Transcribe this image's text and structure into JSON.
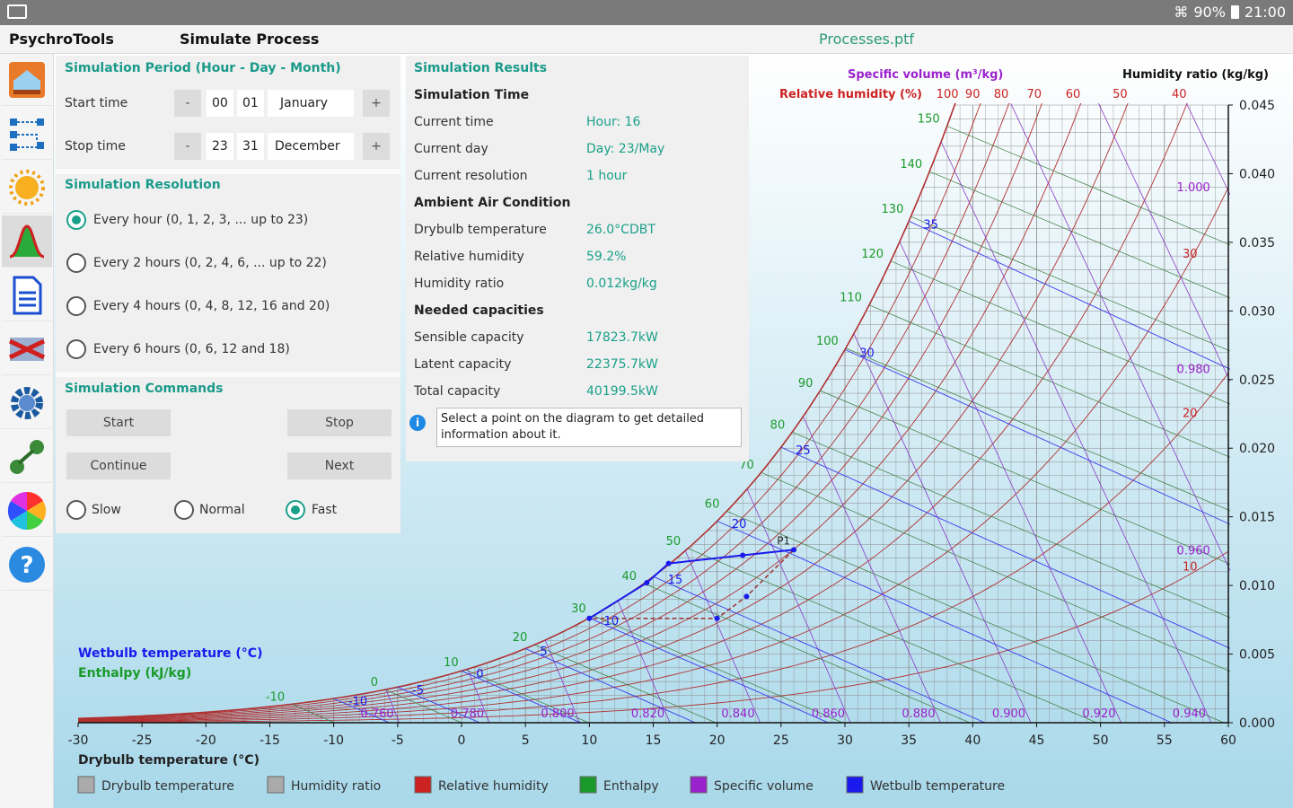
{
  "status_bar": {
    "battery": "90%",
    "time": "21:00"
  },
  "app_bar": {
    "app_name": "PsychroTools",
    "screen_title": "Simulate Process",
    "file_name": "Processes.ptf"
  },
  "sidebar": {
    "items": [
      "home-icon",
      "flow-icon",
      "sun-icon",
      "bell-curve-icon",
      "document-icon",
      "exchange-icon",
      "gear-icon",
      "link-icon",
      "color-wheel-icon",
      "help-icon"
    ],
    "active_index": 3
  },
  "period": {
    "title": "Simulation Period (Hour - Day - Month)",
    "start_label": "Start time",
    "start_hour": "00",
    "start_day": "01",
    "start_month": "January",
    "stop_label": "Stop time",
    "stop_hour": "23",
    "stop_day": "31",
    "stop_month": "December",
    "minus": "-",
    "plus": "+"
  },
  "resolution": {
    "title": "Simulation Resolution",
    "options": [
      "Every hour (0, 1, 2, 3, ... up to 23)",
      "Every 2 hours (0, 2, 4, 6, ... up to 22)",
      "Every 4 hours (0, 4, 8, 12, 16 and 20)",
      "Every 6 hours (0, 6, 12 and 18)"
    ],
    "selected": 0
  },
  "commands": {
    "title": "Simulation Commands",
    "start": "Start",
    "stop": "Stop",
    "continue": "Continue",
    "next": "Next",
    "speeds": [
      "Slow",
      "Normal",
      "Fast"
    ],
    "speed_selected": 2
  },
  "results": {
    "title": "Simulation Results",
    "time_heading": "Simulation Time",
    "current_time_label": "Current time",
    "current_time": "Hour: 16",
    "current_day_label": "Current day",
    "current_day": "Day: 23/May",
    "current_res_label": "Current resolution",
    "current_res": "1 hour",
    "ambient_heading": "Ambient Air Condition",
    "drybulb_label": "Drybulb temperature",
    "drybulb": "26.0°CDBT",
    "rh_label": "Relative humidity",
    "rh": "59.2%",
    "hr_label": "Humidity ratio",
    "hr": "0.012kg/kg",
    "cap_heading": "Needed capacities",
    "sensible_label": "Sensible capacity",
    "sensible": "17823.7kW",
    "latent_label": "Latent capacity",
    "latent": "22375.7kW",
    "total_label": "Total capacity",
    "total": "40199.5kW"
  },
  "info": {
    "text": "Select a point on the diagram to get detailed information about it."
  },
  "chart_data": {
    "type": "line",
    "title": "",
    "xlabel": "Drybulb temperature (°C)",
    "ylabel": "Humidity ratio (kg/kg)",
    "xlim": [
      -30,
      60
    ],
    "ylim": [
      0,
      0.045
    ],
    "x_ticks": [
      -30,
      -25,
      -20,
      -15,
      -10,
      -5,
      0,
      5,
      10,
      15,
      20,
      25,
      30,
      35,
      40,
      45,
      50,
      55,
      60
    ],
    "y_ticks": [
      0.0,
      0.005,
      0.01,
      0.015,
      0.02,
      0.025,
      0.03,
      0.035,
      0.04,
      0.045
    ],
    "y_tick_labels": [
      "0.000",
      "0.005",
      "0.010",
      "0.015",
      "0.020",
      "0.025",
      "0.030",
      "0.035",
      "0.040",
      "0.045"
    ],
    "rh_label": "Relative humidity (%)",
    "rh_top_labels": [
      "100",
      "90",
      "80",
      "70",
      "60",
      "50",
      "40"
    ],
    "rh_side_labels": [
      "30",
      "20",
      "10"
    ],
    "sv_label": "Specific volume (m³/kg)",
    "sv_labels": [
      "0.760",
      "0.780",
      "0.800",
      "0.820",
      "0.840",
      "0.860",
      "0.880",
      "0.900",
      "0.920",
      "0.940",
      "0.960",
      "0.980",
      "1.000"
    ],
    "wb_label": "Wetbulb temperature (°C)",
    "wb_labels": [
      "-10",
      "-5",
      "0",
      "5",
      "10",
      "15",
      "20",
      "25",
      "30",
      "35"
    ],
    "enthalpy_label": "Enthalpy (kJ/kg)",
    "enthalpy_labels": [
      "-10",
      "0",
      "10",
      "20",
      "30",
      "40",
      "50",
      "60",
      "70",
      "80",
      "90",
      "100",
      "110",
      "120",
      "130",
      "140",
      "150"
    ],
    "process_points": [
      {
        "x": 10,
        "y": 0.0076,
        "name": ""
      },
      {
        "x": 14.5,
        "y": 0.0102,
        "name": ""
      },
      {
        "x": 16.2,
        "y": 0.0116,
        "name": ""
      },
      {
        "x": 22,
        "y": 0.0122,
        "name": ""
      },
      {
        "x": 26,
        "y": 0.0126,
        "name": "P1"
      },
      {
        "x": 22.3,
        "y": 0.0092,
        "name": ""
      },
      {
        "x": 20,
        "y": 0.0076,
        "name": ""
      }
    ],
    "legend": [
      "Drybulb temperature",
      "Humidity ratio",
      "Relative humidity",
      "Enthalpy",
      "Specific volume",
      "Wetbulb temperature"
    ],
    "legend_colors": [
      "#aaaaaa",
      "#aaaaaa",
      "#cc2222",
      "#1a9a2a",
      "#9a22cc",
      "#1a1aee"
    ],
    "legend_position": "bottom"
  }
}
